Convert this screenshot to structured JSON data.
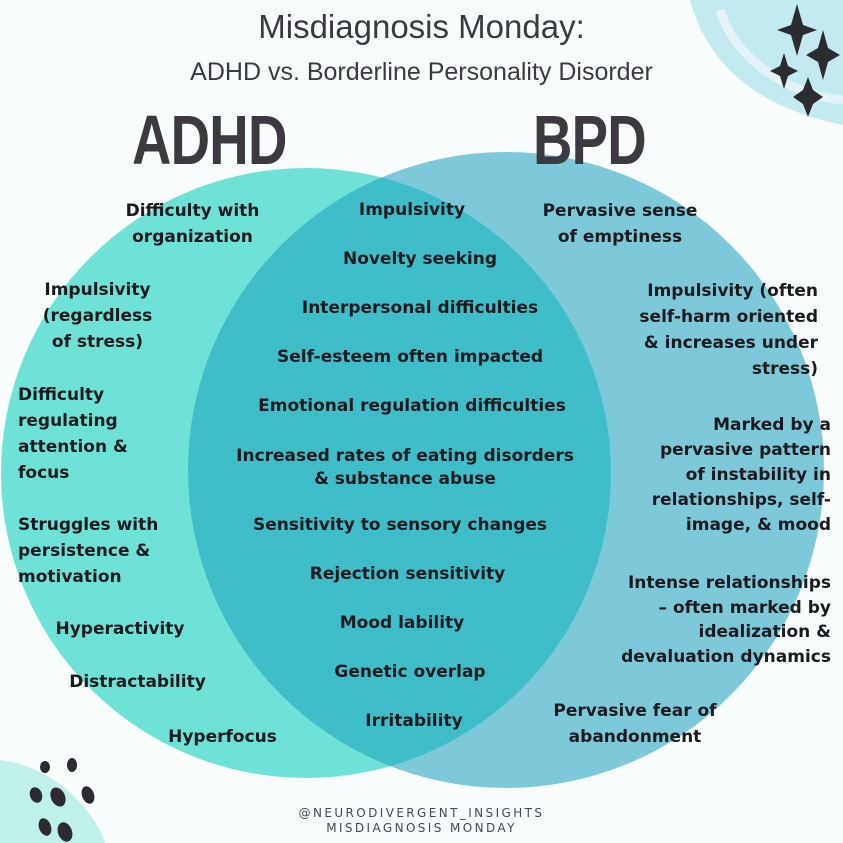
{
  "title": "Misdiagnosis Monday:",
  "subtitle": "ADHD vs. Borderline Personality Disorder",
  "adhd": {
    "heading": "ADHD",
    "items": [
      "Difficulty with\norganization",
      "Impulsivity\n(regardless\nof stress)",
      "Difficulty\nregulating\nattention &\nfocus",
      "Struggles with\npersistence &\nmotivation",
      "Hyperactivity",
      "Distractability",
      "Hyperfocus"
    ]
  },
  "bpd": {
    "heading": "BPD",
    "items": [
      "Pervasive sense\nof emptiness",
      "Impulsivity (often\nself-harm oriented\n& increases under\nstress)",
      "Marked by a\npervasive pattern\nof instability in\nrelationships, self-\nimage, & mood",
      "Intense  relationships\n– often marked by\nidealization &\ndevaluation dynamics",
      "Pervasive fear of\nabandonment"
    ]
  },
  "overlap": {
    "items": [
      "Impulsivity",
      "Novelty seeking",
      "Interpersonal difficulties",
      "Self-esteem often impacted",
      "Emotional regulation difficulties",
      "Increased rates of eating disorders\n& substance abuse",
      "Sensitivity to sensory changes",
      "Rejection sensitivity",
      "Mood lability",
      "Genetic overlap",
      "Irritability"
    ]
  },
  "footer": {
    "handle": "@NEURODIVERGENT_INSIGHTS",
    "series": "MISDIAGNOSIS MONDAY"
  },
  "colors": {
    "adhd_circle": "#6ee2d6",
    "bpd_circle": "#7ec9d9",
    "overlap": "#3fbec9",
    "corner_wash": "#c2eaf0",
    "sparkle": "#2b2b30",
    "text": "#1b1b1f"
  }
}
